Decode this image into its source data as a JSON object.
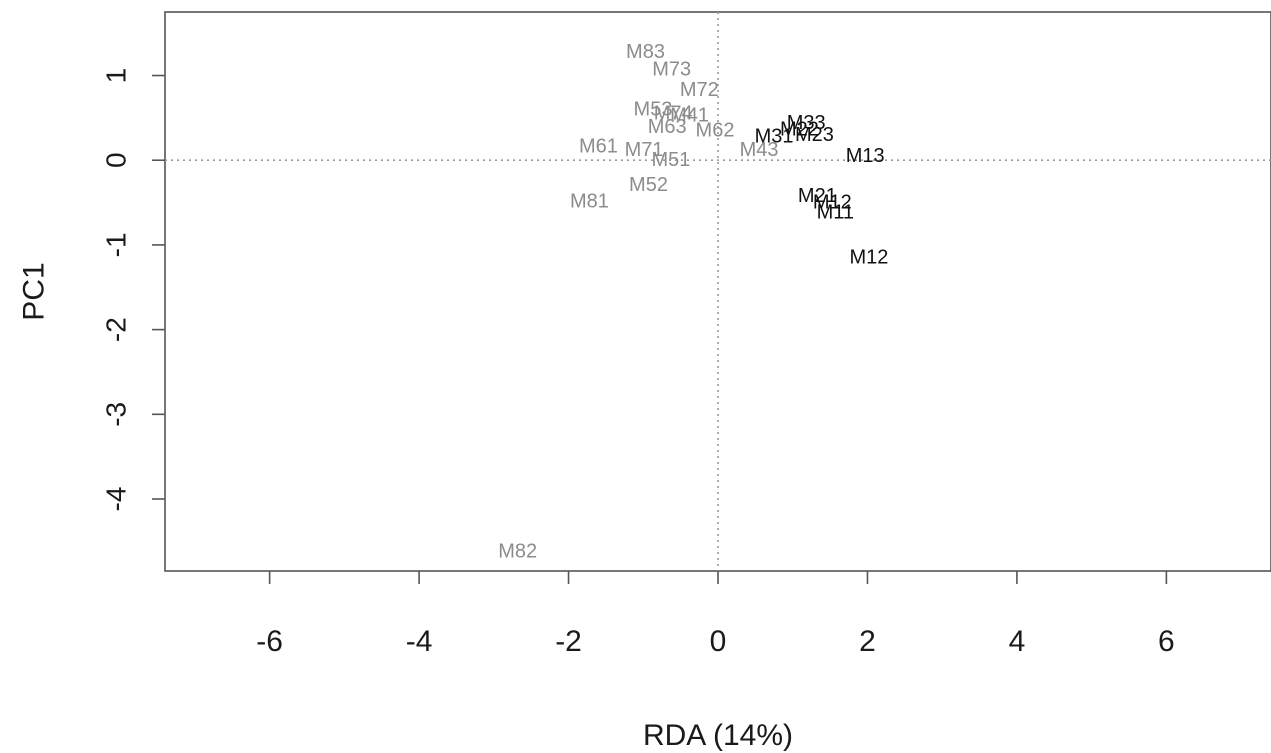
{
  "chart_data": {
    "type": "scatter",
    "title": "",
    "xlabel": "RDA (14%)",
    "ylabel": "PC1",
    "xlim": [
      -7.4,
      7.4
    ],
    "ylim": [
      -4.85,
      1.75
    ],
    "xticks": [
      -6,
      -4,
      -2,
      0,
      2,
      4,
      6
    ],
    "yticks": [
      1,
      0,
      -1,
      -2,
      -3,
      -4
    ],
    "reference_lines": {
      "x": 0,
      "y": 0,
      "style": "dotted"
    },
    "grid": false,
    "colors": {
      "dark": "#111111",
      "light": "#8c8c8c",
      "axis": "#555555",
      "ref": "#999999"
    },
    "points": [
      {
        "label": "M83",
        "x": -0.97,
        "y": 1.28,
        "tone": "light"
      },
      {
        "label": "M73",
        "x": -0.62,
        "y": 1.07,
        "tone": "light"
      },
      {
        "label": "M72",
        "x": -0.25,
        "y": 0.83,
        "tone": "light"
      },
      {
        "label": "M53",
        "x": -0.87,
        "y": 0.6,
        "tone": "light"
      },
      {
        "label": "M74",
        "x": -0.6,
        "y": 0.55,
        "tone": "light"
      },
      {
        "label": "M41",
        "x": -0.38,
        "y": 0.53,
        "tone": "light"
      },
      {
        "label": "M63",
        "x": -0.68,
        "y": 0.39,
        "tone": "light"
      },
      {
        "label": "M62",
        "x": -0.04,
        "y": 0.35,
        "tone": "light"
      },
      {
        "label": "M61",
        "x": -1.6,
        "y": 0.16,
        "tone": "light"
      },
      {
        "label": "M71",
        "x": -0.99,
        "y": 0.12,
        "tone": "light"
      },
      {
        "label": "M51",
        "x": -0.63,
        "y": 0.0,
        "tone": "light"
      },
      {
        "label": "M52",
        "x": -0.93,
        "y": -0.29,
        "tone": "light"
      },
      {
        "label": "M81",
        "x": -1.72,
        "y": -0.49,
        "tone": "light"
      },
      {
        "label": "M43",
        "x": 0.55,
        "y": 0.12,
        "tone": "light"
      },
      {
        "label": "M82",
        "x": -2.68,
        "y": -4.62,
        "tone": "light"
      },
      {
        "label": "M33",
        "x": 1.18,
        "y": 0.44,
        "tone": "dark"
      },
      {
        "label": "M22",
        "x": 1.09,
        "y": 0.36,
        "tone": "dark"
      },
      {
        "label": "M23",
        "x": 1.29,
        "y": 0.3,
        "tone": "dark"
      },
      {
        "label": "M31",
        "x": 0.75,
        "y": 0.28,
        "tone": "dark"
      },
      {
        "label": "M13",
        "x": 1.97,
        "y": 0.05,
        "tone": "dark"
      },
      {
        "label": "M21",
        "x": 1.33,
        "y": -0.42,
        "tone": "dark"
      },
      {
        "label": "M12",
        "x": 1.53,
        "y": -0.5,
        "tone": "dark"
      },
      {
        "label": "M11",
        "x": 1.57,
        "y": -0.62,
        "tone": "dark"
      },
      {
        "label": "M12",
        "x": 2.02,
        "y": -1.15,
        "tone": "dark"
      }
    ]
  }
}
